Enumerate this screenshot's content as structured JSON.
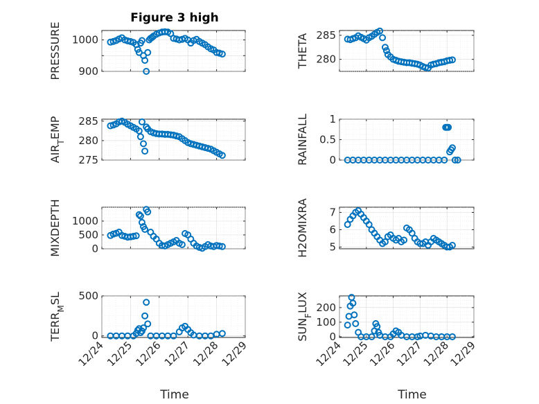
{
  "title": "Figure 3 high",
  "marker_color": "#0072BD",
  "x_tick_labels": [
    "12/24",
    "12/25",
    "12/26",
    "12/27",
    "12/28",
    "12/29"
  ],
  "x_label": "Time",
  "chart_data": [
    {
      "type": "scatter",
      "id": "pressure",
      "ylabel": "PRESSURE",
      "xlim": [
        24,
        29
      ],
      "ylim": [
        900,
        1030
      ],
      "yticks": [
        900,
        950,
        1000
      ],
      "ytick_labels": [
        "900",
        "",
        "1000"
      ],
      "x": [
        24.3,
        24.4,
        24.5,
        24.6,
        24.7,
        24.8,
        24.9,
        25.0,
        25.1,
        25.2,
        25.25,
        25.3,
        25.35,
        25.4,
        25.45,
        25.5,
        25.55,
        25.6,
        25.65,
        25.7,
        25.75,
        25.8,
        25.9,
        26.0,
        26.1,
        26.2,
        26.3,
        26.4,
        26.5,
        26.6,
        26.7,
        26.8,
        26.9,
        27.0,
        27.1,
        27.2,
        27.3,
        27.4,
        27.5,
        27.6,
        27.7,
        27.8,
        27.9,
        28.0,
        28.1,
        28.2
      ],
      "y": [
        993,
        995,
        998,
        1003,
        1007,
        1000,
        997,
        995,
        992,
        985,
        970,
        960,
        990,
        998,
        950,
        935,
        900,
        960,
        1000,
        1005,
        1008,
        1012,
        1018,
        1022,
        1025,
        1026,
        1025,
        1020,
        1005,
        1003,
        1000,
        1002,
        1005,
        1000,
        990,
        998,
        1002,
        995,
        990,
        985,
        978,
        972,
        968,
        960,
        958,
        955
      ]
    },
    {
      "type": "scatter",
      "id": "theta",
      "ylabel": "THETA",
      "xlim": [
        24,
        29
      ],
      "ylim": [
        277.5,
        286
      ],
      "yticks": [
        280,
        285
      ],
      "ytick_labels": [
        "280",
        "285"
      ],
      "x": [
        24.3,
        24.4,
        24.5,
        24.6,
        24.7,
        24.8,
        24.9,
        25.0,
        25.1,
        25.2,
        25.3,
        25.4,
        25.5,
        25.6,
        25.7,
        25.75,
        25.8,
        25.9,
        26.0,
        26.1,
        26.2,
        26.3,
        26.4,
        26.5,
        26.6,
        26.7,
        26.8,
        26.9,
        27.0,
        27.1,
        27.2,
        27.3,
        27.4,
        27.5,
        27.6,
        27.7,
        27.8,
        27.9,
        28.0,
        28.1,
        28.2
      ],
      "y": [
        284.2,
        284.1,
        284.3,
        284.5,
        284.9,
        284.6,
        284.3,
        284.0,
        284.5,
        284.8,
        285.2,
        285.6,
        285.9,
        284.5,
        282.5,
        281.8,
        281.0,
        280.5,
        280.0,
        279.8,
        279.6,
        279.5,
        279.4,
        279.3,
        279.3,
        279.2,
        279.1,
        279.0,
        278.8,
        278.5,
        278.3,
        278.2,
        278.8,
        279.0,
        279.1,
        279.3,
        279.4,
        279.5,
        279.7,
        279.8,
        279.9
      ]
    },
    {
      "type": "scatter",
      "id": "air-temp",
      "ylabel": "AIR_TEMP",
      "xlim": [
        24,
        29
      ],
      "ylim": [
        275,
        285.5
      ],
      "yticks": [
        275,
        280,
        285
      ],
      "ytick_labels": [
        "275",
        "280",
        "285"
      ],
      "x": [
        24.3,
        24.4,
        24.5,
        24.6,
        24.7,
        24.8,
        24.9,
        25.0,
        25.1,
        25.2,
        25.3,
        25.35,
        25.4,
        25.45,
        25.5,
        25.55,
        25.6,
        25.7,
        25.8,
        25.9,
        26.0,
        26.1,
        26.2,
        26.3,
        26.4,
        26.5,
        26.6,
        26.7,
        26.8,
        26.9,
        27.0,
        27.1,
        27.2,
        27.3,
        27.4,
        27.5,
        27.6,
        27.7,
        27.8,
        27.9,
        28.0,
        28.1,
        28.2
      ],
      "y": [
        283.8,
        284.0,
        284.3,
        284.8,
        285.0,
        284.7,
        284.2,
        283.8,
        283.4,
        283.0,
        282.5,
        281.0,
        284.8,
        279.2,
        277.3,
        283.5,
        283.0,
        282.3,
        282.0,
        281.8,
        281.7,
        281.7,
        281.6,
        281.6,
        281.5,
        281.4,
        281.2,
        281.0,
        280.5,
        280.0,
        279.5,
        279.2,
        279.0,
        278.8,
        278.6,
        278.4,
        278.2,
        278.0,
        277.8,
        277.4,
        277.0,
        276.6,
        276.2
      ]
    },
    {
      "type": "scatter",
      "id": "rainfall",
      "ylabel": "RAINFALL",
      "xlim": [
        24,
        29
      ],
      "ylim": [
        0,
        1
      ],
      "yticks": [
        0,
        0.5,
        1
      ],
      "ytick_labels": [
        "0",
        "0.5",
        "1"
      ],
      "x": [
        24.3,
        24.5,
        24.7,
        24.9,
        25.1,
        25.3,
        25.5,
        25.7,
        25.9,
        26.1,
        26.3,
        26.5,
        26.7,
        26.9,
        27.1,
        27.3,
        27.5,
        27.7,
        27.9,
        27.95,
        28.0,
        28.05,
        28.1,
        28.15,
        28.2,
        28.3,
        28.4
      ],
      "y": [
        0,
        0,
        0,
        0,
        0,
        0,
        0,
        0,
        0,
        0,
        0,
        0,
        0,
        0,
        0,
        0,
        0,
        0,
        0,
        0.8,
        0.8,
        0.8,
        0.2,
        0.25,
        0.3,
        0,
        0
      ]
    },
    {
      "type": "scatter",
      "id": "mixdepth",
      "ylabel": "MIXDEPTH",
      "xlim": [
        24,
        29
      ],
      "ylim": [
        0,
        1500
      ],
      "yticks": [
        0,
        500,
        1000
      ],
      "ytick_labels": [
        "0",
        "500",
        "1000"
      ],
      "x": [
        24.3,
        24.4,
        24.5,
        24.6,
        24.7,
        24.8,
        24.9,
        25.0,
        25.1,
        25.2,
        25.3,
        25.35,
        25.4,
        25.45,
        25.5,
        25.55,
        25.6,
        25.7,
        25.8,
        25.9,
        26.0,
        26.1,
        26.2,
        26.3,
        26.4,
        26.5,
        26.6,
        26.7,
        26.8,
        26.9,
        27.0,
        27.1,
        27.2,
        27.3,
        27.4,
        27.5,
        27.6,
        27.7,
        27.8,
        27.9,
        28.0,
        28.1,
        28.2
      ],
      "y": [
        480,
        530,
        560,
        600,
        480,
        450,
        420,
        430,
        450,
        470,
        1230,
        1180,
        950,
        800,
        700,
        1420,
        1330,
        600,
        450,
        350,
        200,
        120,
        100,
        150,
        200,
        250,
        300,
        200,
        150,
        550,
        500,
        350,
        200,
        100,
        50,
        20,
        80,
        150,
        100,
        80,
        120,
        100,
        80
      ]
    },
    {
      "type": "scatter",
      "id": "h2omixra",
      "ylabel": "H2OMIXRA",
      "xlim": [
        24,
        29
      ],
      "ylim": [
        4.9,
        7.3
      ],
      "yticks": [
        5,
        6,
        7
      ],
      "ytick_labels": [
        "5",
        "6",
        "7"
      ],
      "x": [
        24.3,
        24.4,
        24.5,
        24.6,
        24.7,
        24.8,
        24.9,
        25.0,
        25.1,
        25.2,
        25.3,
        25.4,
        25.5,
        25.6,
        25.7,
        25.8,
        25.9,
        26.0,
        26.1,
        26.2,
        26.3,
        26.4,
        26.5,
        26.6,
        26.7,
        26.8,
        26.9,
        27.0,
        27.1,
        27.2,
        27.3,
        27.4,
        27.5,
        27.6,
        27.7,
        27.8,
        27.9,
        28.0,
        28.1,
        28.2
      ],
      "y": [
        6.3,
        6.6,
        6.8,
        7.0,
        7.1,
        6.9,
        6.7,
        6.5,
        6.3,
        6.0,
        5.8,
        5.6,
        5.4,
        5.2,
        5.3,
        5.6,
        5.7,
        5.5,
        5.4,
        5.5,
        5.3,
        5.4,
        6.1,
        6.0,
        5.8,
        5.5,
        5.3,
        5.2,
        5.2,
        5.3,
        5.1,
        5.3,
        5.5,
        5.4,
        5.3,
        5.2,
        5.1,
        5.0,
        5.0,
        5.1
      ]
    },
    {
      "type": "scatter",
      "id": "terr-msl",
      "ylabel": "TERR_MSL",
      "xlim": [
        24,
        29
      ],
      "ylim": [
        -20,
        500
      ],
      "yticks": [
        0,
        500
      ],
      "ytick_labels": [
        "0",
        "500"
      ],
      "x": [
        24.3,
        24.5,
        24.7,
        24.9,
        25.1,
        25.2,
        25.25,
        25.3,
        25.35,
        25.4,
        25.45,
        25.5,
        25.55,
        25.6,
        25.7,
        25.9,
        26.1,
        26.3,
        26.5,
        26.7,
        26.8,
        26.9,
        27.0,
        27.1,
        27.2,
        27.4,
        27.6,
        27.8,
        28.0,
        28.2
      ],
      "y": [
        0,
        0,
        0,
        0,
        0,
        30,
        70,
        90,
        40,
        60,
        100,
        250,
        420,
        150,
        0,
        0,
        0,
        0,
        0,
        50,
        100,
        120,
        80,
        40,
        10,
        0,
        0,
        0,
        20,
        30
      ]
    },
    {
      "type": "scatter",
      "id": "sun-flux",
      "ylabel": "SUN_FLUX",
      "xlim": [
        24,
        29
      ],
      "ylim": [
        -5,
        280
      ],
      "yticks": [
        0,
        100,
        200
      ],
      "ytick_labels": [
        "0",
        "100",
        "200"
      ],
      "x": [
        24.3,
        24.35,
        24.4,
        24.45,
        24.5,
        24.55,
        24.6,
        24.7,
        24.8,
        25.0,
        25.2,
        25.3,
        25.35,
        25.4,
        25.45,
        25.5,
        25.7,
        25.9,
        26.0,
        26.1,
        26.2,
        26.3,
        26.5,
        26.7,
        26.9,
        27.0,
        27.2,
        27.4,
        27.6,
        27.8,
        28.0,
        28.2
      ],
      "y": [
        80,
        140,
        210,
        270,
        230,
        150,
        90,
        30,
        0,
        0,
        0,
        40,
        90,
        70,
        30,
        10,
        0,
        0,
        20,
        40,
        30,
        10,
        0,
        0,
        0,
        5,
        10,
        5,
        0,
        0,
        0,
        0
      ]
    }
  ]
}
